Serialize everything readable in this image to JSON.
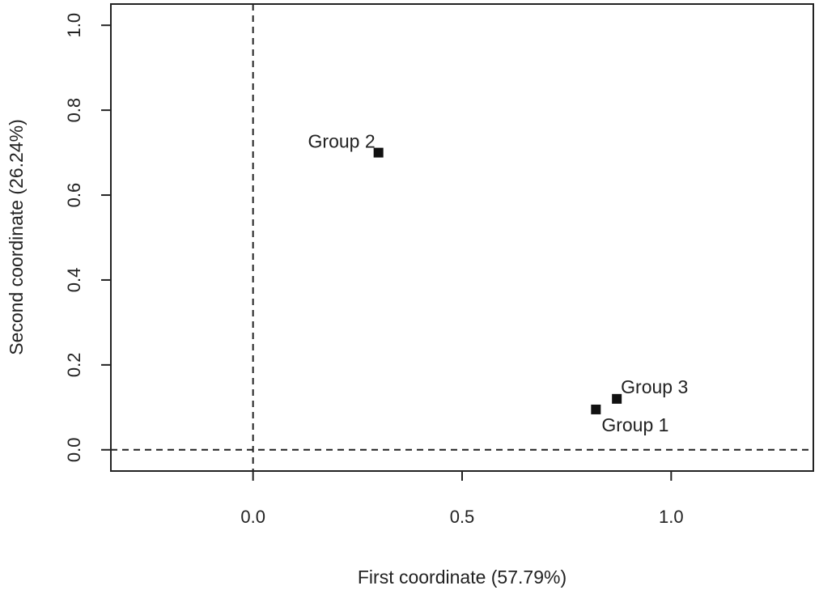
{
  "chart_data": {
    "type": "scatter",
    "title": "",
    "xlabel": "First coordinate (57.79%)",
    "ylabel": "Second coordinate (26.24%)",
    "xlim": [
      -0.34,
      1.34
    ],
    "ylim": [
      -0.05,
      1.05
    ],
    "x_ticks": [
      {
        "value": 0.0,
        "label": "0.0"
      },
      {
        "value": 0.5,
        "label": "0.5"
      },
      {
        "value": 1.0,
        "label": "1.0"
      }
    ],
    "y_ticks": [
      {
        "value": 0.0,
        "label": "0.0"
      },
      {
        "value": 0.2,
        "label": "0.2"
      },
      {
        "value": 0.4,
        "label": "0.4"
      },
      {
        "value": 0.6,
        "label": "0.6"
      },
      {
        "value": 0.8,
        "label": "0.8"
      },
      {
        "value": 1.0,
        "label": "1.0"
      }
    ],
    "reference_lines": {
      "x": 0,
      "y": 0,
      "style": "dashed"
    },
    "grid": false,
    "point_color": "#111111",
    "points": [
      {
        "label": "Group 1",
        "x": 0.82,
        "y": 0.095,
        "label_position": "below-right"
      },
      {
        "label": "Group 2",
        "x": 0.3,
        "y": 0.7,
        "label_position": "above-left"
      },
      {
        "label": "Group 3",
        "x": 0.87,
        "y": 0.12,
        "label_position": "above-right"
      }
    ]
  }
}
